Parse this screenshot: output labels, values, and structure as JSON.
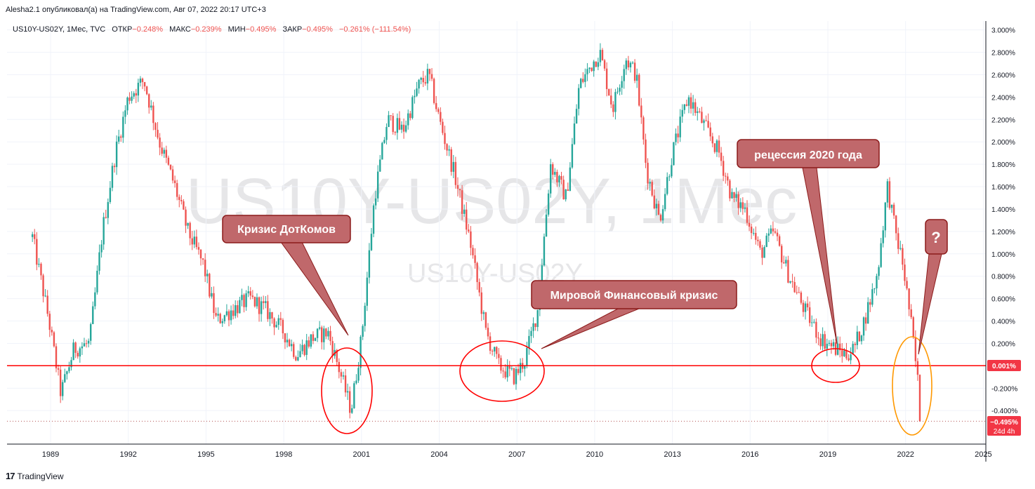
{
  "header": {
    "published": "Alesha2.1 опубликовал(а) на TradingView.com, Авг 07, 2022 20:17 UTC+3"
  },
  "legend": {
    "symbol": "US10Y-US02Y, 1Мес, TVC",
    "open_label": "ОТКР",
    "open_value": "−0.248%",
    "high_label": "МАКС",
    "high_value": "−0.239%",
    "low_label": "МИН",
    "low_value": "−0.495%",
    "close_label": "ЗАКР",
    "close_value": "−0.495%",
    "change": "−0.261% (−111.54%)"
  },
  "watermark": {
    "big": "US10Y-US02Y, 1Мес",
    "small": "US10Y-US02Y"
  },
  "badges": {
    "zero_value": "0.001%",
    "last_value": "−0.495%",
    "countdown": "24d 4h"
  },
  "callouts": {
    "dotcom": "Кризис ДотКомов",
    "gfc": "Мировой Финансовый кризис",
    "recession2020": "рецессия 2020 года",
    "question": "?"
  },
  "footer": {
    "brand": "TradingView",
    "logo": "17"
  },
  "colors": {
    "up": "#26a69a",
    "down": "#ef5350",
    "zero_line": "#ff0000",
    "callout_fill": "#c0686b",
    "callout_stroke": "#8b1a1a",
    "circle_red": "#ff0000",
    "circle_orange": "#ff9800"
  },
  "chart_data": {
    "type": "candlestick",
    "title": "US10Y-US02Y, 1Мес, TVC",
    "timeframe": "1Мес",
    "x_ticks": [
      "1989",
      "1992",
      "1995",
      "1998",
      "2001",
      "2004",
      "2007",
      "2010",
      "2013",
      "2016",
      "2019",
      "2022",
      "2025"
    ],
    "y_ticks": [
      "3.000%",
      "2.800%",
      "2.600%",
      "2.400%",
      "2.200%",
      "2.000%",
      "1.800%",
      "1.600%",
      "1.400%",
      "1.200%",
      "1.000%",
      "0.800%",
      "0.600%",
      "0.400%",
      "0.200%",
      "-0.200%",
      "-0.400%"
    ],
    "y_range": [
      -0.6,
      3.0
    ],
    "x_range": [
      "1988-01",
      "2025-12"
    ],
    "grid": true,
    "reference_lines": [
      {
        "name": "zero",
        "value": 0.001
      },
      {
        "name": "last",
        "value": -0.495
      }
    ],
    "last": {
      "open": -0.248,
      "high": -0.239,
      "low": -0.495,
      "close": -0.495
    },
    "series": [
      {
        "name": "US10Y-US02Y",
        "x": [
          1988.3,
          1988.9,
          1989.4,
          1989.9,
          1990.5,
          1991.0,
          1991.5,
          1992.0,
          1992.6,
          1993.2,
          1993.8,
          1994.3,
          1994.9,
          1995.4,
          1996.0,
          1996.7,
          1997.3,
          1998.0,
          1998.5,
          1999.1,
          1999.7,
          2000.1,
          2000.6,
          2001.0,
          2001.5,
          2002.0,
          2002.6,
          2003.2,
          2003.6,
          2004.0,
          2004.6,
          2005.2,
          2005.8,
          2006.3,
          2006.9,
          2007.3,
          2007.8,
          2008.3,
          2008.9,
          2009.4,
          2009.9,
          2010.2,
          2010.7,
          2011.2,
          2011.6,
          2012.0,
          2012.5,
          2013.0,
          2013.6,
          2014.1,
          2014.8,
          2015.3,
          2015.8,
          2016.4,
          2016.9,
          2017.5,
          2018.1,
          2018.7,
          2019.3,
          2019.7,
          2020.0,
          2020.4,
          2020.9,
          2021.3,
          2021.6,
          2021.9,
          2022.2,
          2022.5,
          2022.6
        ],
        "values": [
          1.15,
          0.45,
          -0.25,
          0.15,
          0.2,
          1.2,
          1.9,
          2.4,
          2.55,
          2.0,
          1.6,
          1.2,
          0.9,
          0.4,
          0.5,
          0.6,
          0.5,
          0.3,
          0.1,
          0.25,
          0.3,
          0.0,
          -0.4,
          0.25,
          1.5,
          2.2,
          2.1,
          2.5,
          2.6,
          2.2,
          1.7,
          1.1,
          0.3,
          0.0,
          -0.1,
          0.05,
          0.5,
          1.8,
          1.5,
          2.5,
          2.7,
          2.8,
          2.3,
          2.75,
          2.6,
          1.75,
          1.3,
          1.9,
          2.4,
          2.2,
          1.9,
          1.5,
          1.4,
          1.0,
          1.2,
          0.8,
          0.5,
          0.25,
          0.15,
          0.1,
          0.15,
          0.4,
          0.8,
          1.6,
          1.2,
          0.9,
          0.4,
          -0.2,
          -0.495
        ]
      }
    ]
  }
}
